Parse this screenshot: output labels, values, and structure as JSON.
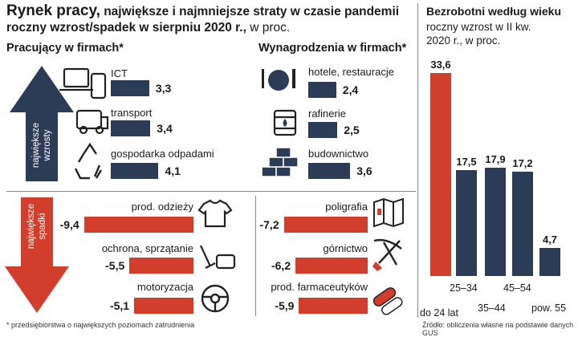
{
  "header": {
    "title_big": "Rynek pracy,",
    "title_rest": "największe i najmniejsze straty w czasie pandemii",
    "subtitle_bold": "roczny wzrost/spadek w sierpniu 2020 r.,",
    "subtitle_unit": "w proc."
  },
  "colors": {
    "navy": "#2d3c56",
    "red": "#d23e2b",
    "grid": "#8a8a8a"
  },
  "left_panel": {
    "title": "Pracujący w firmach*"
  },
  "middle_panel": {
    "title": "Wynagrodzenia w firmach*"
  },
  "arrows": {
    "up_label_1": "największe",
    "up_label_2": "wzrosty",
    "down_label_1": "największe",
    "down_label_2": "spadki"
  },
  "chart_data": [
    {
      "type": "bar",
      "title": "Pracujący w firmach* — największe wzrosty",
      "categories": [
        "ICT",
        "transport",
        "gospodarka odpadami"
      ],
      "values": [
        3.3,
        3.4,
        4.1
      ],
      "value_labels": [
        "3,3",
        "3,4",
        "4,1"
      ],
      "icons": [
        "laptop-phone-icon",
        "truck-icon",
        "recycle-icon"
      ]
    },
    {
      "type": "bar",
      "title": "Wynagrodzenia w firmach* — największe wzrosty",
      "categories": [
        "hotele, restauracje",
        "rafinerie",
        "budownictwo"
      ],
      "values": [
        2.4,
        2.5,
        3.6
      ],
      "value_labels": [
        "2,4",
        "2,5",
        "3,6"
      ],
      "icons": [
        "plate-cutlery-icon",
        "oil-barrel-icon",
        "bricks-icon"
      ]
    },
    {
      "type": "bar",
      "title": "Pracujący w firmach* — największe spadki",
      "categories": [
        "prod. odzieży",
        "ochrona, sprzątanie",
        "motoryzacja"
      ],
      "values": [
        -9.4,
        -5.5,
        -5.1
      ],
      "value_labels": [
        "-9,4",
        "-5,5",
        "-5,1"
      ],
      "icons": [
        "tshirt-icon",
        "cleaning-icon",
        "steering-wheel-icon"
      ]
    },
    {
      "type": "bar",
      "title": "Wynagrodzenia w firmach* — największe spadki",
      "categories": [
        "poligrafia",
        "górnictwo",
        "prod. farmaceutyków"
      ],
      "values": [
        -7.2,
        -6.2,
        -5.9
      ],
      "value_labels": [
        "-7,2",
        "-6,2",
        "-5,9"
      ],
      "icons": [
        "map-brochure-icon",
        "pickaxe-shovel-icon",
        "pills-icon"
      ]
    },
    {
      "type": "bar",
      "title": "Bezrobotni według wieku",
      "subtitle_1": "roczny wzrost w II kw.",
      "subtitle_2": "2020 r., w proc.",
      "categories": [
        "do 24 lat",
        "25–34",
        "35–44",
        "45–54",
        "pow. 55"
      ],
      "values": [
        33.6,
        17.5,
        17.9,
        17.2,
        4.7
      ],
      "value_labels": [
        "33,6",
        "17,5",
        "17,9",
        "17,2",
        "4,7"
      ],
      "ylim": [
        0,
        34
      ]
    }
  ],
  "footer": {
    "note": "* przedsiębiorstwa o największych poziomach zatrudnienia",
    "source": "Źródło: obliczenia własne na podstawie danych GUS"
  }
}
